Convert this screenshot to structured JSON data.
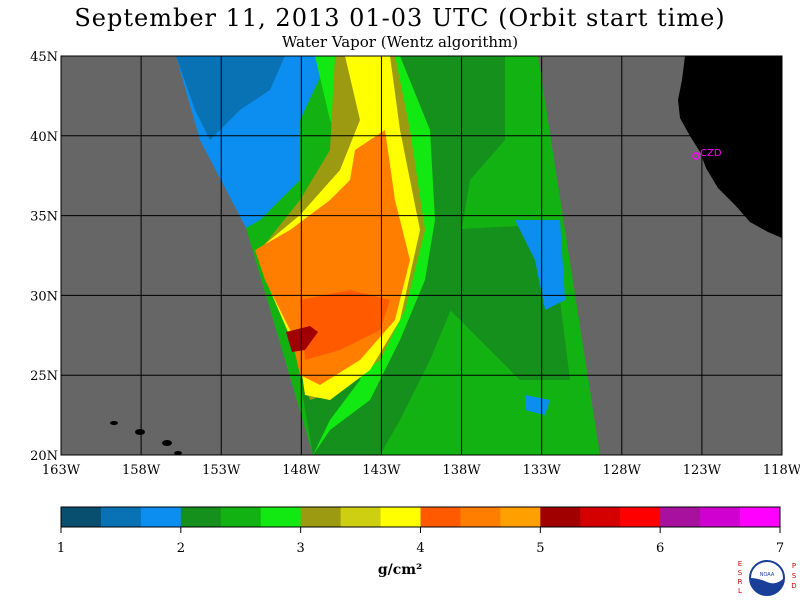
{
  "header": {
    "title": "September 11, 2013  01-03 UTC  (Orbit start time)",
    "subtitle": "Water Vapor (Wentz algorithm)"
  },
  "map": {
    "type": "heatmap",
    "lon_range": [
      -163,
      -118
    ],
    "lat_range": [
      20,
      45
    ],
    "lat_ticks": [
      "45N",
      "40N",
      "35N",
      "30N",
      "25N",
      "20N"
    ],
    "lon_ticks": [
      "163W",
      "158W",
      "153W",
      "148W",
      "143W",
      "138W",
      "133W",
      "128W",
      "123W",
      "118W"
    ],
    "station_label": "CZD",
    "colors": {
      "ocean_nodata": "#666666",
      "land": "#000000",
      "grid": "#000000",
      "station": "#ff00ff"
    }
  },
  "colorbar": {
    "labels": [
      "1",
      "2",
      "3",
      "4",
      "5",
      "6",
      "7"
    ],
    "units": "g/cm²",
    "colors": [
      "#084e6e",
      "#0872b4",
      "#0c8ef0",
      "#16901c",
      "#12b212",
      "#12e812",
      "#9c9a10",
      "#cfcf12",
      "#ffff00",
      "#ff5a00",
      "#ff7e00",
      "#ffa000",
      "#a00000",
      "#d40000",
      "#ff0000",
      "#a8109e",
      "#d000d0",
      "#ff00ff"
    ]
  },
  "logo": {
    "left_letters": "ESRL",
    "right_letters": "PSD",
    "center": "NOAA"
  }
}
